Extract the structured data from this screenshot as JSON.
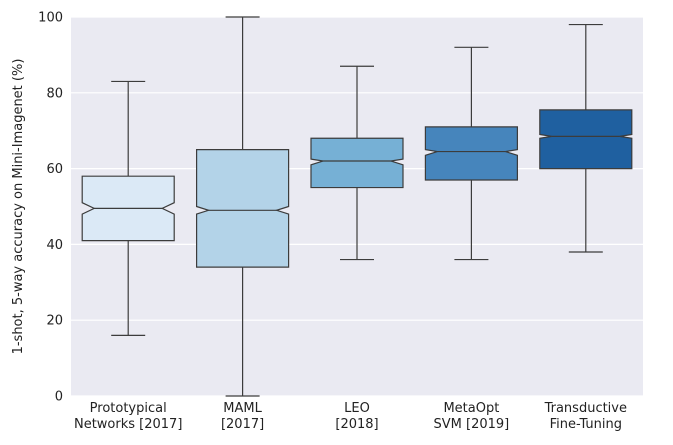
{
  "chart_data": {
    "type": "box",
    "ylabel": "1-shot, 5-way accuracy on Mini-Imagenet (%)",
    "ylim": [
      0,
      100
    ],
    "yticks": [
      0,
      20,
      40,
      60,
      80,
      100
    ],
    "grid": true,
    "notched": true,
    "categories": [
      [
        "Prototypical",
        "Networks [2017]"
      ],
      [
        "MAML",
        "[2017]"
      ],
      [
        "LEO",
        "[2018]"
      ],
      [
        "MetaOpt",
        "SVM [2019]"
      ],
      [
        "Transductive",
        "Fine-Tuning"
      ]
    ],
    "boxes": [
      {
        "whisker_low": 16,
        "q1": 41,
        "median": 49.5,
        "q3": 58,
        "whisker_high": 83,
        "notch_low": 48,
        "notch_high": 51,
        "color": "#dbe9f6"
      },
      {
        "whisker_low": 0,
        "q1": 34,
        "median": 49,
        "q3": 65,
        "whisker_high": 100,
        "notch_low": 48,
        "notch_high": 50,
        "color": "#b3d3e8"
      },
      {
        "whisker_low": 36,
        "q1": 55,
        "median": 62,
        "q3": 68,
        "whisker_high": 87,
        "notch_low": 61,
        "notch_high": 62.5,
        "color": "#76b0d5"
      },
      {
        "whisker_low": 36,
        "q1": 57,
        "median": 64.5,
        "q3": 71,
        "whisker_high": 92,
        "notch_low": 63.5,
        "notch_high": 65,
        "color": "#4685bc"
      },
      {
        "whisker_low": 38,
        "q1": 60,
        "median": 68.5,
        "q3": 75.5,
        "whisker_high": 98,
        "notch_low": 68,
        "notch_high": 69,
        "color": "#1f60a0"
      }
    ]
  }
}
